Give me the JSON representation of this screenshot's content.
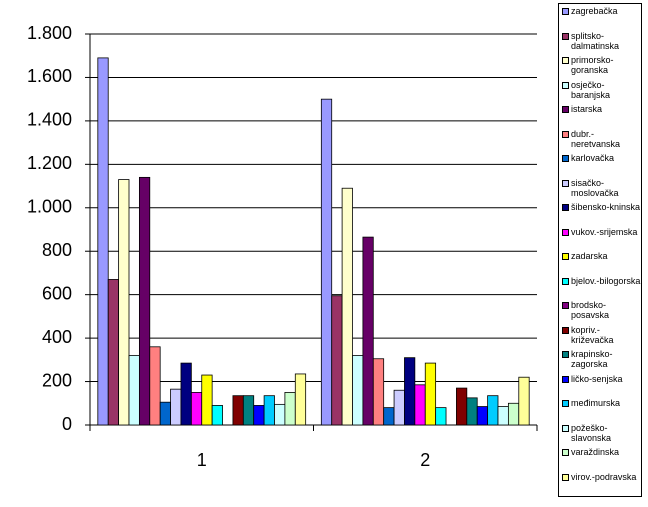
{
  "chart_data": {
    "type": "bar",
    "categories": [
      "1",
      "2"
    ],
    "series": [
      {
        "name": "zagrebačka",
        "color": "#9999FF",
        "values": [
          1690,
          1500
        ]
      },
      {
        "name": "splitsko-dalmatinska",
        "color": "#993366",
        "values": [
          670,
          595
        ]
      },
      {
        "name": "primorsko-goranska",
        "color": "#FFFFCC",
        "values": [
          1130,
          1090
        ]
      },
      {
        "name": "osječko-baranjska",
        "color": "#CCFFFF",
        "values": [
          320,
          320
        ]
      },
      {
        "name": "istarska",
        "color": "#660066",
        "values": [
          1140,
          865
        ]
      },
      {
        "name": "dubr.-neretvanska",
        "color": "#FF8080",
        "values": [
          360,
          305
        ]
      },
      {
        "name": "karlovačka",
        "color": "#0066CC",
        "values": [
          105,
          80
        ]
      },
      {
        "name": "sisačko-moslovačka",
        "color": "#CCCCFF",
        "values": [
          165,
          160
        ]
      },
      {
        "name": "šibensko-kninska",
        "color": "#000080",
        "values": [
          285,
          310
        ]
      },
      {
        "name": "vukov.-srijemska",
        "color": "#FF00FF",
        "values": [
          150,
          185
        ]
      },
      {
        "name": "zadarska",
        "color": "#FFFF00",
        "values": [
          230,
          285
        ]
      },
      {
        "name": "bjelov.-bilogorska",
        "color": "#00FFFF",
        "values": [
          90,
          80
        ]
      },
      {
        "name": "brodsko-posavska",
        "color": "#800080",
        "values": [
          0,
          0
        ]
      },
      {
        "name": "kopriv.-križevačka",
        "color": "#800000",
        "values": [
          135,
          170
        ]
      },
      {
        "name": "krapinsko-zagorska",
        "color": "#008080",
        "values": [
          135,
          125
        ]
      },
      {
        "name": "ličko-senjska",
        "color": "#0000FF",
        "values": [
          90,
          85
        ]
      },
      {
        "name": "međimurska",
        "color": "#00CCFF",
        "values": [
          135,
          135
        ]
      },
      {
        "name": "požeško-slavonska",
        "color": "#CCFFFF",
        "values": [
          95,
          85
        ]
      },
      {
        "name": "varaždinska",
        "color": "#CCFFCC",
        "values": [
          150,
          100
        ]
      },
      {
        "name": "virov.-podravska",
        "color": "#FFFF99",
        "values": [
          235,
          220
        ]
      }
    ],
    "ylim": [
      0,
      1800
    ],
    "yticks": [
      0,
      200,
      400,
      600,
      800,
      {
        "value": 1000,
        "label": "1.000"
      },
      {
        "value": 1200,
        "label": "1.200"
      },
      {
        "value": 1400,
        "label": "1.400"
      },
      {
        "value": 1600,
        "label": "1.600"
      },
      {
        "value": 1800,
        "label": "1.800"
      }
    ],
    "grid": true,
    "legend": "right"
  }
}
